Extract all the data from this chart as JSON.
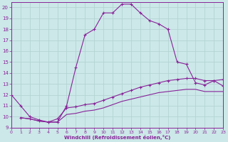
{
  "xlabel": "Windchill (Refroidissement éolien,°C)",
  "bg_color": "#cce8e8",
  "grid_color": "#b0d0d0",
  "line_color": "#882299",
  "xlim": [
    0,
    23
  ],
  "ylim": [
    9,
    20.5
  ],
  "yticks": [
    9,
    10,
    11,
    12,
    13,
    14,
    15,
    16,
    17,
    18,
    19,
    20
  ],
  "xticks": [
    0,
    1,
    2,
    3,
    4,
    5,
    6,
    7,
    8,
    9,
    10,
    11,
    12,
    13,
    14,
    15,
    16,
    17,
    18,
    19,
    20,
    21,
    22,
    23
  ],
  "line1_x": [
    0,
    1,
    2,
    3,
    4,
    5,
    6,
    7,
    8,
    9,
    10,
    11,
    12,
    13,
    14,
    15,
    16,
    17,
    18,
    19,
    20,
    21,
    22,
    23
  ],
  "line1_y": [
    12.0,
    11.0,
    10.0,
    9.7,
    9.5,
    9.5,
    11.0,
    14.5,
    17.5,
    18.0,
    19.5,
    19.5,
    20.3,
    20.3,
    19.5,
    18.8,
    18.5,
    18.0,
    15.0,
    14.8,
    13.1,
    12.9,
    13.3,
    12.8
  ],
  "line2_x": [
    1,
    2,
    3,
    4,
    5,
    6,
    7,
    8,
    9,
    10,
    11,
    12,
    13,
    14,
    15,
    16,
    17,
    18,
    19,
    20,
    21,
    22,
    23
  ],
  "line2_y": [
    9.9,
    9.8,
    9.6,
    9.5,
    9.8,
    10.8,
    10.9,
    11.1,
    11.2,
    11.5,
    11.8,
    12.1,
    12.4,
    12.7,
    12.9,
    13.1,
    13.3,
    13.4,
    13.5,
    13.5,
    13.3,
    13.3,
    13.4
  ],
  "line3_x": [
    1,
    2,
    3,
    4,
    5,
    6,
    7,
    8,
    9,
    10,
    11,
    12,
    13,
    14,
    15,
    16,
    17,
    18,
    19,
    20,
    21,
    22,
    23
  ],
  "line3_y": [
    9.9,
    9.8,
    9.6,
    9.5,
    9.5,
    10.2,
    10.3,
    10.5,
    10.6,
    10.8,
    11.1,
    11.4,
    11.6,
    11.8,
    12.0,
    12.2,
    12.3,
    12.4,
    12.5,
    12.5,
    12.3,
    12.3,
    12.3
  ]
}
